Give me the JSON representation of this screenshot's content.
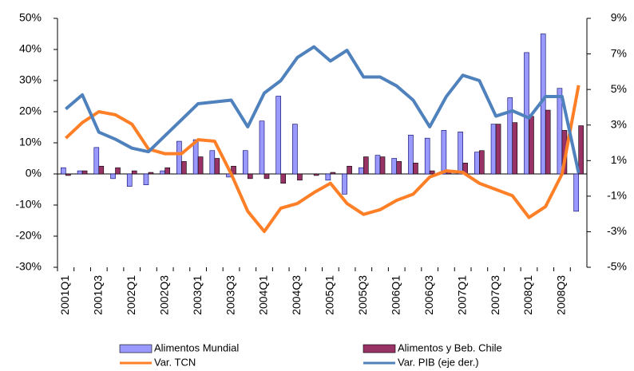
{
  "chart_data": {
    "type": "bar-line",
    "categories": [
      "2001Q1",
      null,
      "2001Q3",
      null,
      "2002Q1",
      null,
      "2002Q3",
      null,
      "2003Q1",
      null,
      "2003Q3",
      null,
      "2004Q1",
      null,
      "2004Q3",
      null,
      "2005Q1",
      null,
      "2005Q3",
      null,
      "2006Q1",
      null,
      "2006Q3",
      null,
      "2007Q1",
      null,
      "2007Q3",
      null,
      "2008Q1",
      null,
      "2008Q3",
      null
    ],
    "series": [
      {
        "name": "Alimentos Mundial",
        "type": "bar",
        "color": "#9999ff",
        "values": [
          2,
          1,
          8.5,
          -1.5,
          -4,
          -3.5,
          1,
          10.5,
          11,
          7.5,
          -1,
          7.5,
          17,
          25,
          16,
          0,
          -2,
          -6.5,
          2,
          6,
          5,
          12.5,
          11.5,
          14,
          13.5,
          7,
          16,
          24.5,
          39,
          45,
          27.5,
          -12
        ]
      },
      {
        "name": "Alimentos y Beb. Chile",
        "type": "bar",
        "color": "#993366",
        "values": [
          -0.5,
          1,
          2.5,
          2,
          1,
          0.5,
          2,
          4,
          5.5,
          5,
          2.5,
          -1.5,
          -1.5,
          -3,
          -2,
          -0.5,
          0.5,
          2.5,
          5.5,
          5.5,
          4,
          3.5,
          1,
          1,
          3.5,
          7.5,
          16,
          16.5,
          18.5,
          20.5,
          14,
          15.5
        ]
      },
      {
        "name": "Var. TCN",
        "type": "line",
        "color": "#ff7f27",
        "values": [
          11.5,
          16.5,
          20,
          19,
          16,
          8,
          6.5,
          6.5,
          11,
          10.5,
          0,
          -12,
          -18.5,
          -11,
          -9.5,
          -6,
          -3,
          -9.5,
          -13,
          -11.5,
          -8.5,
          -6.5,
          -1,
          1,
          0.5,
          -3,
          -5,
          -7,
          -14,
          -10.5,
          0,
          28.5
        ]
      },
      {
        "name": "Var. PIB (eje der.)",
        "type": "line",
        "axis": "y2",
        "color": "#4f81bd",
        "values": [
          3.9,
          4.7,
          2.6,
          2.2,
          1.7,
          1.5,
          2.4,
          3.3,
          4.2,
          4.3,
          4.4,
          2.9,
          4.8,
          5.5,
          6.8,
          7.4,
          6.6,
          7.2,
          5.7,
          5.7,
          5.2,
          4.4,
          2.9,
          4.6,
          5.8,
          5.5,
          3.5,
          3.8,
          3.4,
          4.6,
          4.6,
          0.3
        ]
      }
    ],
    "ylim": [
      -30,
      50
    ],
    "yticks": [
      {
        "value": -30,
        "label": "-30%"
      },
      {
        "value": -20,
        "label": "-20%"
      },
      {
        "value": -10,
        "label": "-10%"
      },
      {
        "value": 0,
        "label": "0%"
      },
      {
        "value": 10,
        "label": "10%"
      },
      {
        "value": 20,
        "label": "20%"
      },
      {
        "value": 30,
        "label": "30%"
      },
      {
        "value": 40,
        "label": "40%"
      },
      {
        "value": 50,
        "label": "50%"
      }
    ],
    "y2lim": [
      -5,
      9
    ],
    "y2ticks": [
      {
        "value": -5,
        "label": "-5%"
      },
      {
        "value": -3,
        "label": "-3%"
      },
      {
        "value": -1,
        "label": "-1%"
      },
      {
        "value": 1,
        "label": "1%"
      },
      {
        "value": 3,
        "label": "3%"
      },
      {
        "value": 5,
        "label": "5%"
      },
      {
        "value": 7,
        "label": "7%"
      },
      {
        "value": 9,
        "label": "9%"
      }
    ]
  }
}
